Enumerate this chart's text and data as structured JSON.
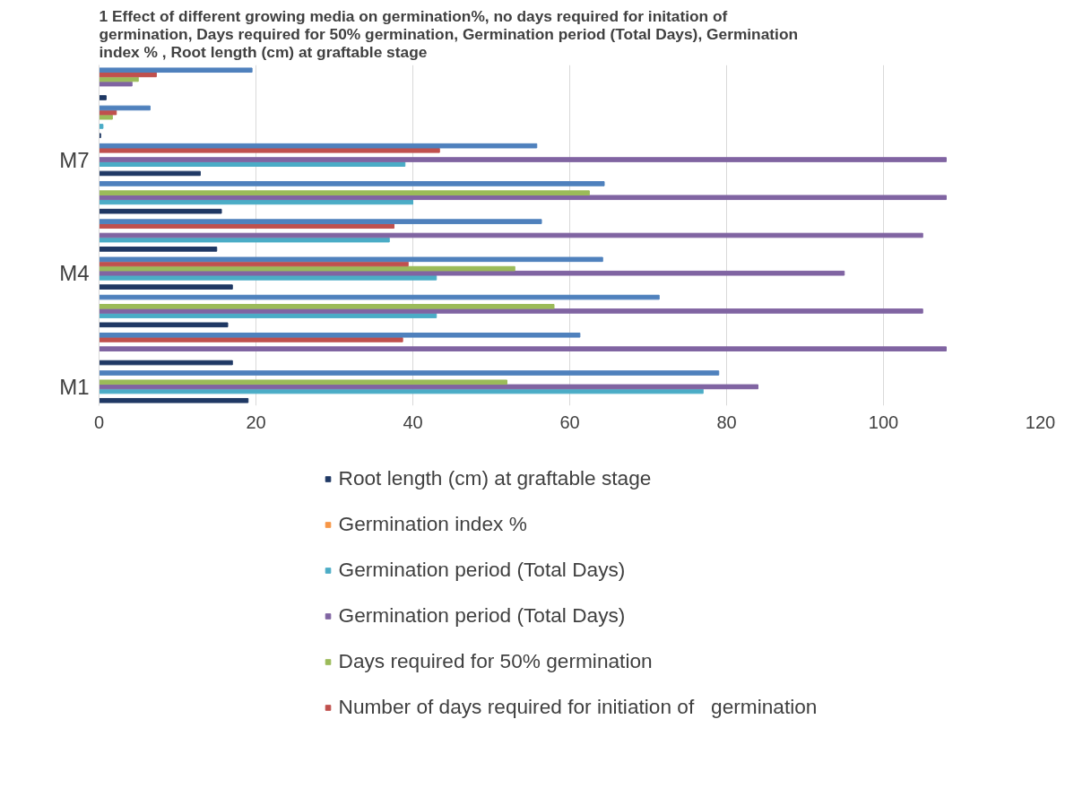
{
  "chart_data": {
    "type": "bar",
    "orientation": "horizontal",
    "title": "1 Effect of different growing media on germination%, no days required for initation of germination, Days required for 50% germination, Germination period (Total Days), Germination index % , Root length (cm) at graftable stage",
    "categories": [
      null,
      null,
      "M7",
      null,
      null,
      "M4",
      null,
      null,
      "M1"
    ],
    "series": [
      {
        "name": "Root length (cm) at graftable stage",
        "color": "#1f3864",
        "values": [
          0.9,
          0.2,
          12.9,
          15.6,
          15,
          17,
          16.4,
          17,
          19
        ]
      },
      {
        "name": "Germination index %",
        "color": "#f79646",
        "values": [
          null,
          null,
          null,
          null,
          null,
          null,
          null,
          null,
          null
        ]
      },
      {
        "name": "Germination period (Total Days)",
        "color": "#4bacc6",
        "values": [
          null,
          0.5,
          39,
          40,
          37,
          43,
          43,
          null,
          77
        ]
      },
      {
        "name": "Germination period (Total Days)",
        "color": "#8064a2",
        "values": [
          4.2,
          null,
          108,
          108,
          105,
          95,
          105,
          108,
          84
        ]
      },
      {
        "name": "Days required for 50% germination",
        "color": "#9bbb59",
        "values": [
          5,
          1.7,
          null,
          62.5,
          null,
          53,
          58,
          null,
          52
        ]
      },
      {
        "name": "Number of days required for initiation of   germination",
        "color": "#c0504d",
        "values": [
          7.3,
          2.2,
          43.4,
          null,
          37.6,
          39.4,
          null,
          38.7,
          null
        ]
      },
      {
        "color": "#4f81bd",
        "values": [
          19.5,
          6.5,
          55.8,
          64.4,
          56.4,
          64.2,
          71.4,
          61.3,
          79
        ]
      }
    ],
    "xlim": [
      0,
      120
    ],
    "xticks": [
      0,
      20,
      40,
      60,
      80,
      100,
      120
    ],
    "grid": "x",
    "legend": "bottom"
  }
}
